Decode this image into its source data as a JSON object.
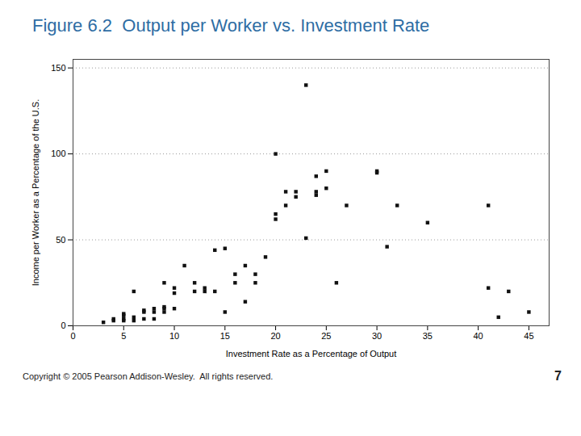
{
  "chart_data": {
    "type": "scatter",
    "title": "Figure 6.2  Output per Worker vs. Investment Rate",
    "x_label": "Investment Rate as a Percentage of Output",
    "y_label": "Income per Worker as a Percentage of the U.S.",
    "x": [
      3,
      4,
      4,
      5,
      5,
      5,
      5,
      6,
      6,
      6,
      7,
      7,
      7,
      8,
      8,
      8,
      9,
      9,
      9,
      9,
      10,
      10,
      10,
      11,
      12,
      12,
      13,
      13,
      14,
      14,
      15,
      15,
      16,
      16,
      17,
      17,
      18,
      18,
      19,
      20,
      20,
      21,
      21,
      22,
      22,
      23,
      24,
      24,
      25,
      26,
      27,
      30,
      31,
      32,
      35,
      41,
      41,
      42,
      43,
      45,
      20,
      23,
      24,
      25,
      30
    ],
    "values": [
      2,
      3,
      4,
      3,
      4,
      6,
      7,
      3,
      5,
      20,
      4,
      8,
      9,
      4,
      8,
      10,
      8,
      10,
      25,
      11,
      10,
      19,
      22,
      35,
      20,
      25,
      20,
      22,
      20,
      44,
      8,
      45,
      25,
      30,
      14,
      35,
      25,
      30,
      40,
      62,
      65,
      70,
      78,
      75,
      78,
      51,
      76,
      78,
      80,
      25,
      70,
      89,
      46,
      70,
      60,
      70,
      22,
      5,
      20,
      8,
      100,
      140,
      87,
      90,
      90
    ],
    "color": "#111111",
    "marker": "square",
    "xlim": [
      0,
      47
    ],
    "ylim": [
      0,
      155
    ],
    "xticks": [
      0,
      5,
      10,
      15,
      20,
      25,
      30,
      35,
      40,
      45
    ],
    "yticks": [
      0,
      50,
      100,
      150
    ],
    "grid": true,
    "annotations": [
      "Copyright © 2005 Pearson Addison-Wesley.  All rights reserved.",
      "7"
    ]
  }
}
